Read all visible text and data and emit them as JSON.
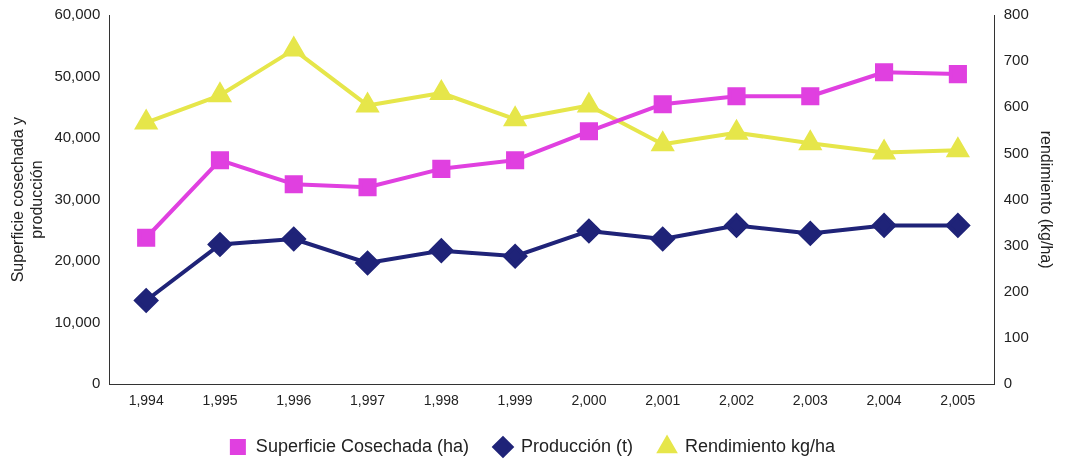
{
  "chart_data": {
    "type": "line",
    "ylabel": "Superficie cosechada y producción",
    "y2label": "rendimiento (kg/ha)",
    "categories": [
      "1,994",
      "1,995",
      "1,996",
      "1,997",
      "1,998",
      "1,999",
      "2,000",
      "2,001",
      "2,002",
      "2,003",
      "2,004",
      "2,005"
    ],
    "series": [
      {
        "name": "Superficie Cosechada (ha)",
        "color": "#e040e0",
        "marker": "square",
        "values": [
          23800,
          36400,
          32500,
          32000,
          35000,
          36400,
          41100,
          45500,
          46800,
          46800,
          50700,
          50400
        ]
      },
      {
        "name": "Producción (t)",
        "color": "#1f2378",
        "marker": "diamond",
        "values": [
          13600,
          22700,
          23600,
          19700,
          21700,
          20800,
          24900,
          23600,
          25800,
          24500,
          25800,
          25800
        ]
      },
      {
        "name": "Rendimiento kg/ha",
        "color": "#e6e64a",
        "marker": "triangle",
        "axis": "y2",
        "values": [
          567,
          626,
          725,
          604,
          631,
          574,
          604,
          520,
          545,
          522,
          502,
          507
        ]
      }
    ],
    "ylim": [
      0,
      60000
    ],
    "yticks": [
      {
        "value": 0,
        "label": "0"
      },
      {
        "value": 10000,
        "label": "10,000"
      },
      {
        "value": 20000,
        "label": "20,000"
      },
      {
        "value": 30000,
        "label": "30,000"
      },
      {
        "value": 40000,
        "label": "40,000"
      },
      {
        "value": 50000,
        "label": "50,000"
      },
      {
        "value": 60000,
        "label": "60,000"
      }
    ],
    "y2lim": [
      0,
      800
    ],
    "y2ticks": [
      0,
      100,
      200,
      300,
      400,
      500,
      600,
      700,
      800
    ],
    "grid": false,
    "legend": "bottom",
    "line_style": "solid"
  }
}
